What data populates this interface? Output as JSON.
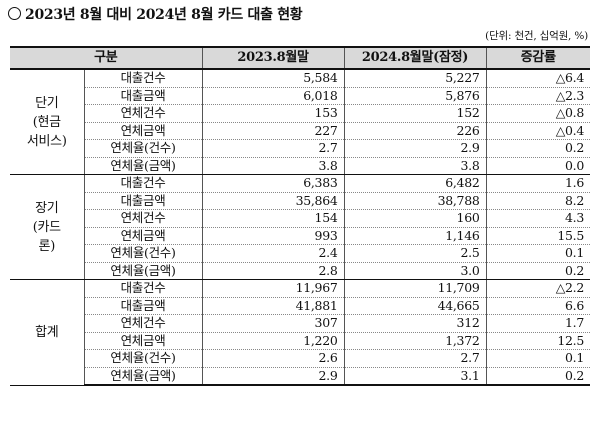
{
  "title": "2023년 8월 대비 2024년 8월 카드 대출 현황",
  "unit": "(단위: 천건, 십억원, %)",
  "headers": {
    "category": "구분",
    "prev": "2023.8월말",
    "curr": "2024.8월말(잠정)",
    "change": "증감률"
  },
  "groups": [
    {
      "name": "단기\n(현금\n서비스)",
      "rows": [
        {
          "item": "대출건수",
          "prev": "5,584",
          "curr": "5,227",
          "change": "△6.4"
        },
        {
          "item": "대출금액",
          "prev": "6,018",
          "curr": "5,876",
          "change": "△2.3"
        },
        {
          "item": "연체건수",
          "prev": "153",
          "curr": "152",
          "change": "△0.8"
        },
        {
          "item": "연체금액",
          "prev": "227",
          "curr": "226",
          "change": "△0.4"
        },
        {
          "item": "연체율(건수)",
          "prev": "2.7",
          "curr": "2.9",
          "change": "0.2"
        },
        {
          "item": "연체율(금액)",
          "prev": "3.8",
          "curr": "3.8",
          "change": "0.0"
        }
      ]
    },
    {
      "name": "장기\n(카드\n론)",
      "rows": [
        {
          "item": "대출건수",
          "prev": "6,383",
          "curr": "6,482",
          "change": "1.6"
        },
        {
          "item": "대출금액",
          "prev": "35,864",
          "curr": "38,788",
          "change": "8.2"
        },
        {
          "item": "연체건수",
          "prev": "154",
          "curr": "160",
          "change": "4.3"
        },
        {
          "item": "연체금액",
          "prev": "993",
          "curr": "1,146",
          "change": "15.5"
        },
        {
          "item": "연체율(건수)",
          "prev": "2.4",
          "curr": "2.5",
          "change": "0.1"
        },
        {
          "item": "연체율(금액)",
          "prev": "2.8",
          "curr": "3.0",
          "change": "0.2"
        }
      ]
    },
    {
      "name": "합계",
      "rows": [
        {
          "item": "대출건수",
          "prev": "11,967",
          "curr": "11,709",
          "change": "△2.2"
        },
        {
          "item": "대출금액",
          "prev": "41,881",
          "curr": "44,665",
          "change": "6.6"
        },
        {
          "item": "연체건수",
          "prev": "307",
          "curr": "312",
          "change": "1.7"
        },
        {
          "item": "연체금액",
          "prev": "1,220",
          "curr": "1,372",
          "change": "12.5"
        },
        {
          "item": "연체율(건수)",
          "prev": "2.6",
          "curr": "2.7",
          "change": "0.1"
        },
        {
          "item": "연체율(금액)",
          "prev": "2.9",
          "curr": "3.1",
          "change": "0.2"
        }
      ]
    }
  ]
}
